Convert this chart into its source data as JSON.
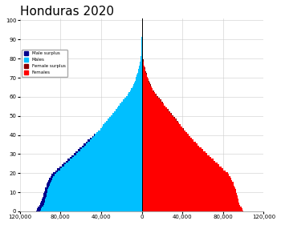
{
  "title": "Honduras 2020",
  "title_fontsize": 11,
  "xlim": [
    -120000,
    120000
  ],
  "xticks": [
    -120000,
    -80000,
    -40000,
    0,
    40000,
    80000,
    120000
  ],
  "xtick_labels": [
    "120,000",
    "80,000",
    "40,000",
    "0",
    "40,000",
    "80,000",
    "120,000"
  ],
  "ylim": [
    0,
    101
  ],
  "male_color": "#00BFFF",
  "female_color": "#FF0000",
  "male_surplus_color": "#00008B",
  "female_surplus_color": "#8B0000",
  "background_color": "#FFFFFF",
  "grid_color": "#CCCCCC",
  "legend_labels": [
    "Male surplus",
    "Males",
    "Female surplus",
    "Females"
  ],
  "legend_colors": [
    "#00008B",
    "#00BFFF",
    "#8B0000",
    "#FF0000"
  ],
  "ages": [
    0,
    1,
    2,
    3,
    4,
    5,
    6,
    7,
    8,
    9,
    10,
    11,
    12,
    13,
    14,
    15,
    16,
    17,
    18,
    19,
    20,
    21,
    22,
    23,
    24,
    25,
    26,
    27,
    28,
    29,
    30,
    31,
    32,
    33,
    34,
    35,
    36,
    37,
    38,
    39,
    40,
    41,
    42,
    43,
    44,
    45,
    46,
    47,
    48,
    49,
    50,
    51,
    52,
    53,
    54,
    55,
    56,
    57,
    58,
    59,
    60,
    61,
    62,
    63,
    64,
    65,
    66,
    67,
    68,
    69,
    70,
    71,
    72,
    73,
    74,
    75,
    76,
    77,
    78,
    79,
    80,
    81,
    82,
    83,
    84,
    85,
    86,
    87,
    88,
    89,
    90,
    91,
    92,
    93,
    94,
    95,
    96,
    97,
    98,
    99,
    100
  ],
  "male_pop": [
    104000,
    103000,
    102000,
    101000,
    100000,
    99000,
    98000,
    97500,
    97000,
    96500,
    96000,
    95500,
    95000,
    94000,
    93500,
    93000,
    92000,
    91000,
    90000,
    89000,
    87000,
    85000,
    83000,
    81000,
    79000,
    77000,
    75000,
    73000,
    71000,
    69000,
    67000,
    65000,
    63000,
    61000,
    59000,
    57000,
    55000,
    53000,
    51000,
    49000,
    47000,
    45000,
    43000,
    41000,
    39500,
    38000,
    36500,
    35000,
    33500,
    32000,
    30500,
    29000,
    27500,
    26000,
    24500,
    23000,
    21500,
    20000,
    18500,
    17000,
    15500,
    14000,
    12800,
    11600,
    10500,
    9500,
    8600,
    7800,
    7000,
    6300,
    5600,
    5000,
    4400,
    3900,
    3400,
    2900,
    2500,
    2100,
    1800,
    1500,
    1200,
    1000,
    800,
    650,
    500,
    400,
    300,
    220,
    160,
    110,
    70,
    45,
    28,
    17,
    10,
    6,
    4,
    2,
    1,
    1,
    0
  ],
  "female_pop": [
    100000,
    99000,
    98000,
    97000,
    96000,
    95500,
    95000,
    94500,
    94000,
    93500,
    93000,
    92500,
    92000,
    91000,
    90500,
    90000,
    89000,
    88000,
    87000,
    86000,
    84500,
    82500,
    80500,
    78500,
    76500,
    74500,
    72500,
    70500,
    68500,
    66500,
    64500,
    62500,
    60500,
    58500,
    56500,
    55000,
    53000,
    51000,
    49500,
    47500,
    46000,
    44500,
    43000,
    41500,
    40000,
    38500,
    37000,
    35500,
    34000,
    32500,
    31000,
    29500,
    28000,
    26500,
    25000,
    23500,
    22000,
    20500,
    19000,
    17500,
    16000,
    14500,
    13200,
    12000,
    10900,
    9900,
    9000,
    8200,
    7400,
    6700,
    6000,
    5400,
    4800,
    4200,
    3700,
    3200,
    2700,
    2300,
    1900,
    1600,
    1300,
    1050,
    850,
    680,
    530,
    410,
    310,
    230,
    165,
    115,
    75,
    48,
    30,
    18,
    11,
    7,
    4,
    3,
    2,
    1,
    0
  ]
}
